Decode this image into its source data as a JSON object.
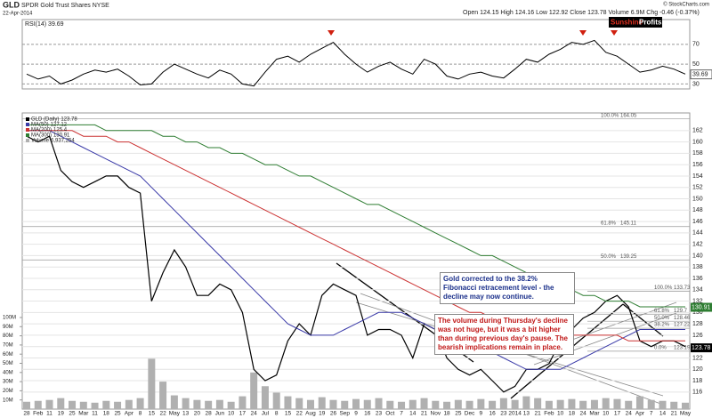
{
  "header": {
    "symbol": "GLD",
    "name": "SPDR Gold Trust Shares NYSE",
    "date": "22-Apr-2014",
    "quote": "Open 124.15 High 124.16 Low 122.92 Close 123.78 Volume 6.9M Chg -0.46 (-0.37%)",
    "copyright": "© StockCharts.com",
    "logo_a": "Sunshine",
    "logo_b": "Profits.com"
  },
  "annotations": [
    "Gold corrected to the 38.2% Fibonacci retracement level - the decline may now continue.",
    "The volume during Thursday's decline was not huge, but it was a bit higher than during previous day's pause. The bearish implications remain in place."
  ],
  "chart_data": [
    {
      "type": "line",
      "categories": [
        "28",
        "Feb",
        "11",
        "19",
        "25",
        "Mar",
        "11",
        "18",
        "25",
        "Apr",
        "8",
        "15",
        "22",
        "May",
        "13",
        "20",
        "28",
        "Jun",
        "10",
        "17",
        "24",
        "Jul",
        "8",
        "15",
        "22",
        "Aug",
        "19",
        "26",
        "Sep",
        "9",
        "16",
        "23",
        "Oct",
        "7",
        "14",
        "21",
        "Nov",
        "18",
        "25",
        "Dec",
        "9",
        "16",
        "23",
        "2014",
        "13",
        "21",
        "Feb",
        "10",
        "18",
        "24",
        "Mar",
        "10",
        "17",
        "24",
        "Apr",
        "7",
        "14",
        "21",
        "May"
      ],
      "series": [
        {
          "name": "GLD (Daily)",
          "last": 123.78,
          "color": "#000000",
          "values": [
            161,
            160,
            161,
            155,
            153,
            152,
            153,
            154,
            154,
            152,
            151,
            132,
            137,
            141,
            138,
            133,
            133,
            135,
            134,
            130,
            120,
            118,
            119,
            125,
            128,
            126,
            133,
            135,
            134,
            133,
            126,
            127,
            127,
            126,
            122,
            128,
            127,
            122,
            120,
            119,
            120,
            118,
            116,
            117,
            120,
            120,
            121,
            125,
            127,
            129,
            130,
            132,
            133,
            131,
            125,
            124,
            125,
            125,
            124
          ]
        },
        {
          "name": "MA(50)",
          "last": 127.12,
          "color": "#3a3aa8",
          "values": [
            162,
            162,
            162,
            161,
            160,
            159,
            158,
            157,
            156,
            155,
            154,
            152,
            150,
            148,
            146,
            144,
            142,
            140,
            138,
            136,
            134,
            132,
            130,
            128,
            127,
            126,
            126,
            126,
            127,
            128,
            129,
            130,
            130,
            130,
            129,
            128,
            127,
            127,
            126,
            125,
            124,
            123,
            122,
            121,
            120,
            120,
            120,
            120,
            121,
            122,
            123,
            124,
            125,
            126,
            127,
            127,
            127,
            127,
            127
          ]
        },
        {
          "name": "MA(200)",
          "last": 125.4,
          "color": "#cc3333",
          "values": [
            162,
            162,
            162,
            162,
            162,
            161,
            161,
            161,
            160,
            160,
            159,
            158,
            157,
            156,
            155,
            154,
            153,
            152,
            151,
            150,
            149,
            148,
            147,
            146,
            145,
            144,
            143,
            142,
            141,
            140,
            139,
            138,
            137,
            136,
            135,
            134,
            133,
            132,
            131,
            130,
            130,
            129,
            129,
            128,
            128,
            127,
            127,
            127,
            126,
            126,
            126,
            126,
            126,
            125,
            125,
            125,
            125,
            125,
            125
          ]
        },
        {
          "name": "MA(300)",
          "last": 130.91,
          "color": "#2e7d32",
          "values": [
            163,
            163,
            163,
            163,
            163,
            163,
            163,
            162,
            162,
            162,
            162,
            162,
            161,
            161,
            160,
            160,
            159,
            159,
            158,
            158,
            157,
            156,
            156,
            155,
            154,
            154,
            153,
            152,
            151,
            150,
            149,
            149,
            148,
            147,
            146,
            145,
            144,
            143,
            142,
            141,
            140,
            140,
            139,
            138,
            137,
            136,
            135,
            135,
            134,
            133,
            133,
            132,
            132,
            132,
            131,
            131,
            131,
            131,
            131
          ]
        }
      ],
      "ylim": [
        113,
        165.1
      ],
      "yticks": [
        116,
        118,
        120,
        122,
        124,
        126,
        128,
        130,
        132,
        134,
        136,
        138,
        140,
        142,
        144,
        146,
        148,
        150,
        152,
        154,
        156,
        158,
        160,
        162
      ],
      "grid": true,
      "badges": [
        {
          "value": 130.91,
          "color": "#2e7d32"
        },
        {
          "value": 123.78,
          "color": "#000000"
        }
      ],
      "fib_long": [
        {
          "label": "100.0%",
          "value": 164.05
        },
        {
          "label": "61.8%",
          "value": 145.11
        },
        {
          "label": "50.0%",
          "value": 139.25
        }
      ],
      "fib_short": [
        {
          "label": "100.0%",
          "value": 133.73
        },
        {
          "label": "61.8%",
          "value": 129.7
        },
        {
          "label": "50.0%",
          "value": 128.46
        },
        {
          "label": "38.2%",
          "value": 127.22
        },
        {
          "label": "0.0%",
          "value": 123.19
        }
      ]
    },
    {
      "type": "bar",
      "name": "Volume",
      "legend_value": "6,937,254",
      "color": "#b0b0b0",
      "values": [
        8,
        9,
        10,
        12,
        9,
        8,
        7,
        9,
        8,
        10,
        12,
        55,
        30,
        15,
        12,
        10,
        9,
        10,
        8,
        14,
        40,
        25,
        18,
        14,
        12,
        10,
        13,
        10,
        9,
        11,
        10,
        12,
        9,
        8,
        10,
        12,
        9,
        8,
        10,
        9,
        11,
        9,
        12,
        10,
        14,
        12,
        9,
        10,
        11,
        9,
        10,
        12,
        11,
        9,
        14,
        10,
        9,
        8,
        7
      ],
      "ylim": [
        0,
        100
      ],
      "yticks": [
        {
          "value": 10,
          "label": "10M"
        },
        {
          "value": 20,
          "label": "20M"
        },
        {
          "value": 30,
          "label": "30M"
        },
        {
          "value": 40,
          "label": "40M"
        },
        {
          "value": 50,
          "label": "50M"
        },
        {
          "value": 60,
          "label": "60M"
        },
        {
          "value": 70,
          "label": "70M"
        },
        {
          "value": 80,
          "label": "80M"
        },
        {
          "value": 90,
          "label": "90M"
        },
        {
          "value": 100,
          "label": "100M"
        }
      ]
    },
    {
      "type": "line",
      "title": "RSI(14) 39.69",
      "color": "#000000",
      "last": 39.69,
      "values": [
        40,
        35,
        38,
        30,
        34,
        40,
        44,
        42,
        45,
        38,
        29,
        30,
        42,
        50,
        45,
        40,
        36,
        44,
        40,
        30,
        28,
        42,
        55,
        58,
        52,
        60,
        66,
        72,
        60,
        50,
        42,
        48,
        52,
        45,
        40,
        55,
        50,
        38,
        35,
        40,
        42,
        38,
        36,
        45,
        55,
        52,
        60,
        65,
        72,
        70,
        74,
        62,
        58,
        50,
        42,
        44,
        48,
        45,
        40
      ],
      "ylim": [
        25,
        95
      ],
      "yticks": [
        30,
        50,
        70
      ]
    }
  ]
}
